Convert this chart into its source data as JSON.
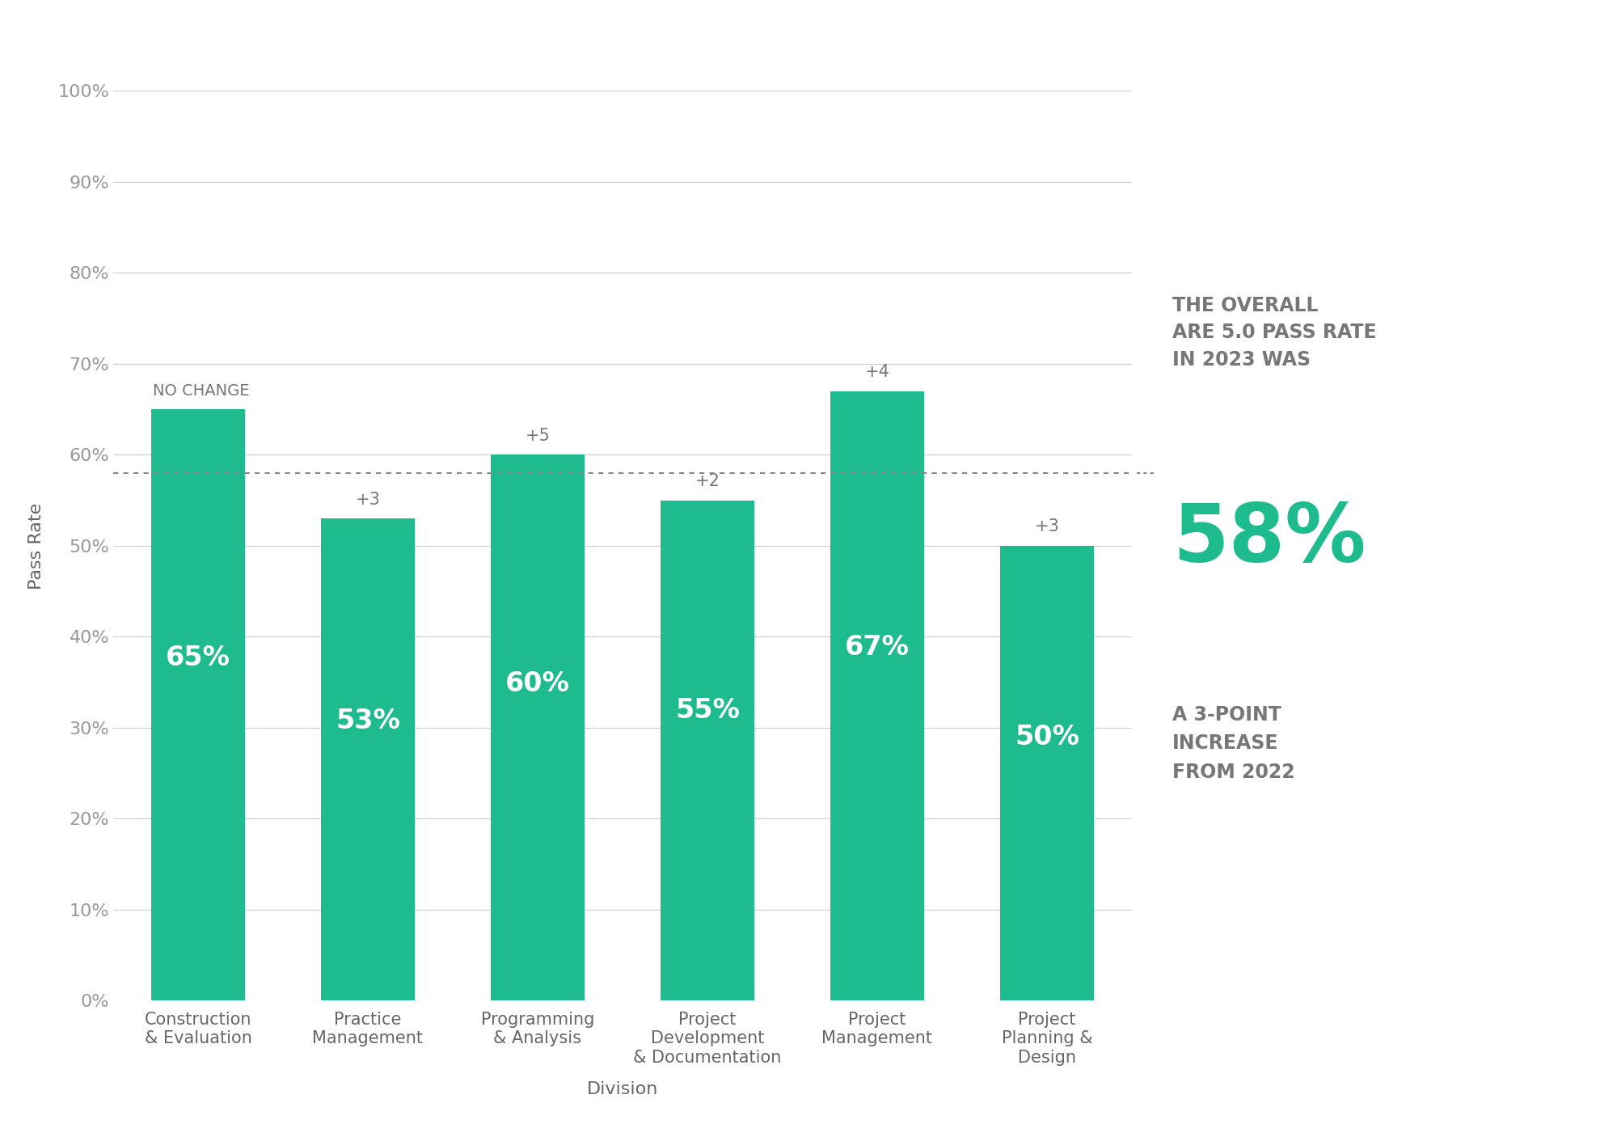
{
  "categories": [
    "Construction\n& Evaluation",
    "Practice\nManagement",
    "Programming\n& Analysis",
    "Project\nDevelopment\n& Documentation",
    "Project\nManagement",
    "Project\nPlanning &\nDesign"
  ],
  "values": [
    65,
    53,
    60,
    55,
    67,
    50
  ],
  "changes": [
    "NO CHANGE",
    "+3",
    "+5",
    "+2",
    "+4",
    "+3"
  ],
  "bar_color": "#1EBB8E",
  "background_color": "#FFFFFF",
  "ylabel": "Pass Rate",
  "xlabel": "Division",
  "ylim": [
    0,
    100
  ],
  "yticks": [
    0,
    10,
    20,
    30,
    40,
    50,
    60,
    70,
    80,
    90,
    100
  ],
  "ytick_labels": [
    "0%",
    "10%",
    "20%",
    "30%",
    "40%",
    "50%",
    "60%",
    "70%",
    "80%",
    "90%",
    "100%"
  ],
  "bar_label_color": "#FFFFFF",
  "bar_label_fontsize": 24,
  "change_label_color": "#777777",
  "change_label_fontsize": 15,
  "overall_rate": "58%",
  "overall_rate_color": "#1EBB8E",
  "overall_rate_fontsize": 72,
  "overall_header": "THE OVERALL\nARE 5.0 PASS RATE\nIN 2023 WAS",
  "overall_header_fontsize": 17,
  "overall_subtext": "A 3-POINT\nINCREASE\nFROM 2022",
  "overall_subtext_fontsize": 17,
  "overall_text_color": "#777777",
  "dotted_line_y": 58,
  "dotted_line_color": "#888888",
  "grid_color": "#CCCCCC",
  "tick_label_color": "#999999",
  "axis_label_color": "#666666",
  "ylabel_fontsize": 16,
  "xlabel_fontsize": 16,
  "ytick_fontsize": 16,
  "xtick_fontsize": 15
}
